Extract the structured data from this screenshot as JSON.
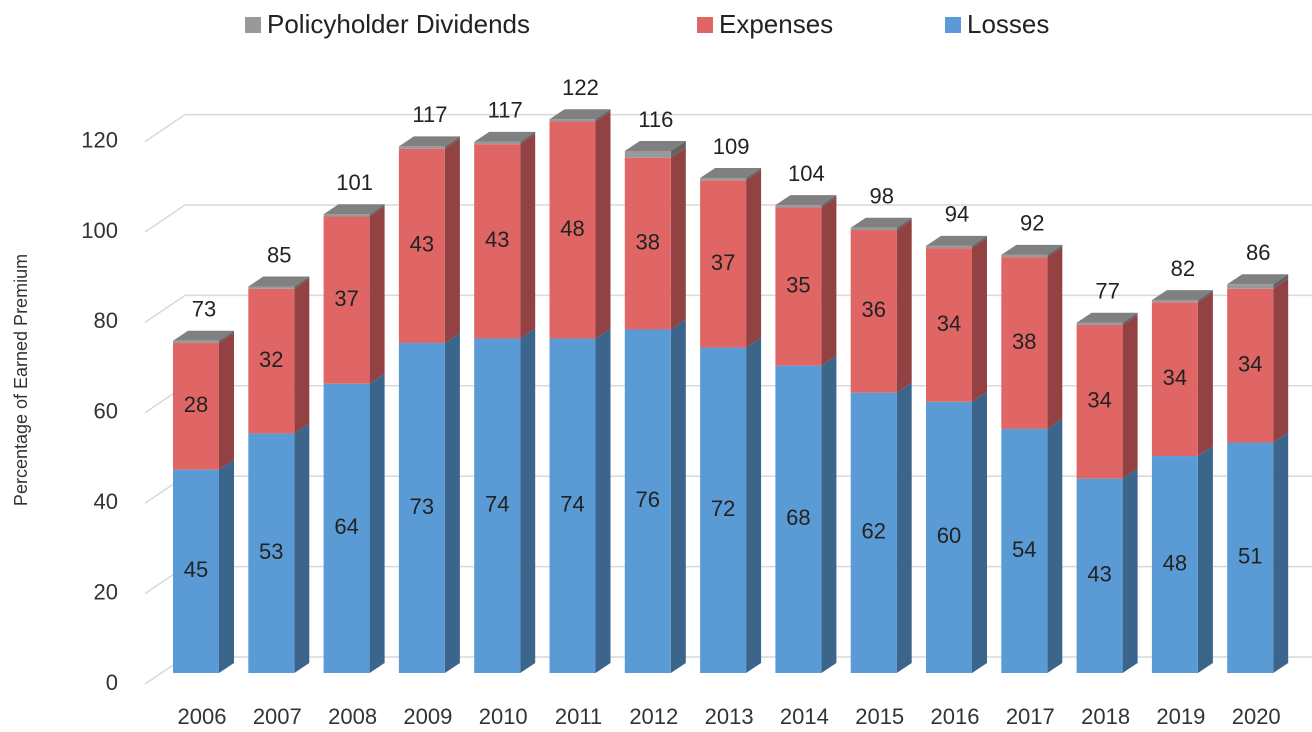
{
  "chart_data": {
    "type": "bar3d_stacked",
    "y_axis_label": "Percentage of Earned Premium",
    "categories": [
      "2006",
      "2007",
      "2008",
      "2009",
      "2010",
      "2011",
      "2012",
      "2013",
      "2014",
      "2015",
      "2016",
      "2017",
      "2018",
      "2019",
      "2020"
    ],
    "series": [
      {
        "name": "Policyholder Dividends",
        "color": "#999999",
        "values": [
          0.5,
          0.5,
          0.5,
          0.5,
          0.5,
          0.5,
          1.5,
          0.5,
          0.5,
          0.5,
          0.5,
          0.5,
          0.5,
          0.5,
          1
        ]
      },
      {
        "name": "Expenses",
        "color": "#e06666",
        "values": [
          28,
          32,
          37,
          43,
          43,
          48,
          38,
          37,
          35,
          36,
          34,
          38,
          34,
          34,
          34
        ]
      },
      {
        "name": "Losses",
        "color": "#5b9bd5",
        "values": [
          45,
          53,
          64,
          73,
          74,
          74,
          76,
          72,
          68,
          62,
          60,
          54,
          43,
          48,
          51
        ]
      }
    ],
    "totals": [
      73,
      85,
      101,
      117,
      117,
      122,
      116,
      109,
      104,
      98,
      94,
      92,
      77,
      82,
      86
    ],
    "ylim": [
      0,
      120
    ],
    "yticks": [
      0,
      20,
      40,
      60,
      80,
      100,
      120
    ],
    "grid": true
  }
}
